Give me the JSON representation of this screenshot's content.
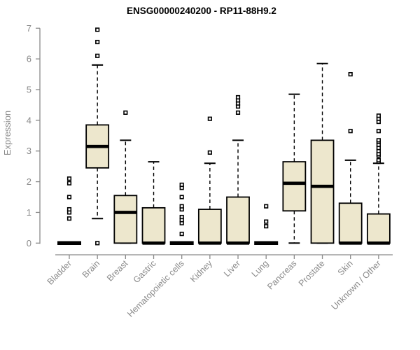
{
  "title": "ENSG00000240200 - RP11-88H9.2",
  "chart_data": {
    "type": "boxplot",
    "title": "ENSG00000240200 - RP11-88H9.2",
    "xlabel": "",
    "ylabel": "Expression",
    "ylim": [
      0,
      7
    ],
    "yticks": [
      0,
      1,
      2,
      3,
      4,
      5,
      6,
      7
    ],
    "grid": false,
    "legend": "none",
    "box_fill_color": "#EDE7CD",
    "box_border_color": "#000000",
    "axis_color": "#8a8a8a",
    "categories": [
      "Bladder",
      "Brain",
      "Breast",
      "Gastric",
      "Hematopoietic cells",
      "Kidney",
      "Liver",
      "Lung",
      "Pancreas",
      "Prostate",
      "Skin",
      "Unknown / Other"
    ],
    "series": [
      {
        "name": "Bladder",
        "min": 0,
        "q1": 0,
        "median": 0,
        "q3": 0,
        "max": 0,
        "outliers": [
          0.8,
          1.0,
          1.1,
          1.5,
          1.95,
          2.1
        ]
      },
      {
        "name": "Brain",
        "min": 0.8,
        "q1": 2.45,
        "median": 3.15,
        "q3": 3.85,
        "max": 5.8,
        "outliers": [
          0,
          6.1,
          6.55,
          6.95
        ]
      },
      {
        "name": "Breast",
        "min": 0,
        "q1": 0,
        "median": 1.0,
        "q3": 1.55,
        "max": 3.35,
        "outliers": [
          4.25
        ]
      },
      {
        "name": "Gastric",
        "min": 0,
        "q1": 0,
        "median": 0,
        "q3": 1.15,
        "max": 2.65,
        "outliers": []
      },
      {
        "name": "Hematopoietic cells",
        "min": 0,
        "q1": 0,
        "median": 0,
        "q3": 0,
        "max": 0,
        "outliers": [
          0.3,
          0.65,
          0.75,
          0.85,
          1.1,
          1.2,
          1.5,
          1.8,
          1.9
        ]
      },
      {
        "name": "Kidney",
        "min": 0,
        "q1": 0,
        "median": 0,
        "q3": 1.1,
        "max": 2.6,
        "outliers": [
          2.95,
          4.05
        ]
      },
      {
        "name": "Liver",
        "min": 0,
        "q1": 0,
        "median": 0,
        "q3": 1.5,
        "max": 3.35,
        "outliers": [
          4.25,
          4.45,
          4.55,
          4.65,
          4.75
        ]
      },
      {
        "name": "Lung",
        "min": 0,
        "q1": 0,
        "median": 0,
        "q3": 0,
        "max": 0,
        "outliers": [
          0.55,
          0.7,
          1.2
        ]
      },
      {
        "name": "Pancreas",
        "min": 0,
        "q1": 1.05,
        "median": 1.95,
        "q3": 2.65,
        "max": 4.85,
        "outliers": []
      },
      {
        "name": "Prostate",
        "min": 0,
        "q1": 0,
        "median": 1.85,
        "q3": 3.35,
        "max": 5.85,
        "outliers": []
      },
      {
        "name": "Skin",
        "min": 0,
        "q1": 0,
        "median": 0,
        "q3": 1.3,
        "max": 2.7,
        "outliers": [
          3.65,
          5.5
        ]
      },
      {
        "name": "Unknown / Other",
        "min": 0,
        "q1": 0,
        "median": 0,
        "q3": 0.95,
        "max": 2.6,
        "outliers": [
          2.65,
          2.7,
          2.85,
          2.9,
          3.0,
          3.1,
          3.2,
          3.3,
          3.35,
          3.65,
          3.95,
          4.05,
          4.15
        ]
      }
    ]
  }
}
